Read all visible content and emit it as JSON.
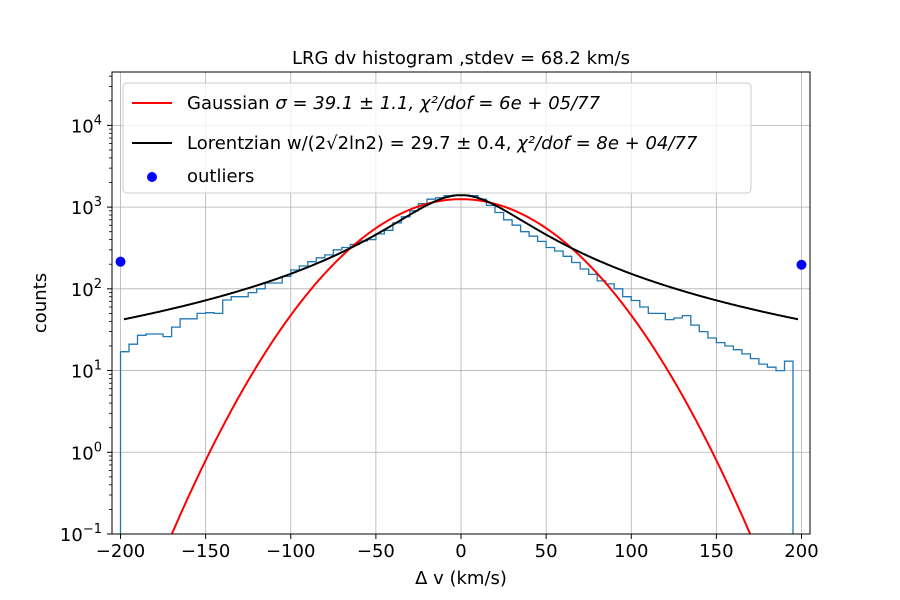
{
  "chart_data": {
    "type": "histogram",
    "title": "LRG dv histogram ,stdev = 68.2 km/s",
    "xlabel": "Δ v (km/s)",
    "ylabel": "counts",
    "xlim": [
      -205,
      205
    ],
    "ylim": [
      0.1,
      45000
    ],
    "yscale": "log",
    "grid": true,
    "legend_position": "top",
    "x_ticks": [
      -200,
      -150,
      -100,
      -50,
      0,
      50,
      100,
      150,
      200
    ],
    "x_tick_labels": [
      "−200",
      "−150",
      "−100",
      "−50",
      "0",
      "50",
      "100",
      "150",
      "200"
    ],
    "y_ticks": [
      {
        "value": 0.1,
        "base": "10",
        "exp": "−1"
      },
      {
        "value": 1,
        "base": "10",
        "exp": "0"
      },
      {
        "value": 10,
        "base": "10",
        "exp": "1"
      },
      {
        "value": 100,
        "base": "10",
        "exp": "2"
      },
      {
        "value": 1000,
        "base": "10",
        "exp": "3"
      },
      {
        "value": 10000,
        "base": "10",
        "exp": "4"
      }
    ],
    "histogram": {
      "color": "#1f77b4",
      "bin_width": 5,
      "bin_start": -200,
      "counts": [
        17,
        21,
        27,
        28,
        28,
        26,
        34,
        43,
        43,
        50,
        51,
        50,
        73,
        80,
        80,
        90,
        100,
        118,
        118,
        142,
        170,
        190,
        215,
        240,
        260,
        300,
        320,
        350,
        385,
        400,
        470,
        520,
        640,
        760,
        900,
        1100,
        1250,
        1300,
        1380,
        1400,
        1400,
        1380,
        1250,
        1050,
        860,
        700,
        600,
        500,
        440,
        380,
        320,
        290,
        250,
        210,
        175,
        150,
        125,
        115,
        100,
        80,
        72,
        60,
        50,
        50,
        42,
        44,
        47,
        36,
        30,
        25,
        22,
        20,
        18,
        16,
        14,
        12,
        11,
        10,
        13,
        0.05
      ]
    },
    "series": [
      {
        "name": "Gaussian $\\sigma = 39.1\\pm1.1, \\chi^2/dof = 6e+05/77$",
        "type": "line",
        "color": "#ff0000",
        "model": "gaussian",
        "amplitude": 1250,
        "mu": 0,
        "sigma": 39.1,
        "x_range": [
          -200,
          200
        ]
      },
      {
        "name": "Lorentzian w/(2$\\sqrt{2ln2}$) = 29.7$\\pm$0.4, $\\chi^2/dof = 8e+04/77$",
        "type": "line",
        "color": "#000000",
        "model": "lorentzian",
        "amplitude": 1400,
        "mu": 0,
        "gamma": 35,
        "x_range": [
          -198,
          198
        ]
      },
      {
        "name": "outliers",
        "type": "scatter",
        "color": "#0000ff",
        "points": [
          {
            "x": -200,
            "y": 215
          },
          {
            "x": 200,
            "y": 197
          }
        ]
      }
    ],
    "legend": [
      {
        "key": "gaussian",
        "prefix": "Gaussian ",
        "math": "σ = 39.1 ± 1.1, χ²/dof = 6e + 05/77"
      },
      {
        "key": "lorentzian",
        "prefix": "Lorentzian w/(2√2ln2) = 29.7 ± 0.4, ",
        "math": "χ²/dof = 8e + 04/77"
      },
      {
        "key": "outliers",
        "prefix": "outliers",
        "math": ""
      }
    ]
  }
}
